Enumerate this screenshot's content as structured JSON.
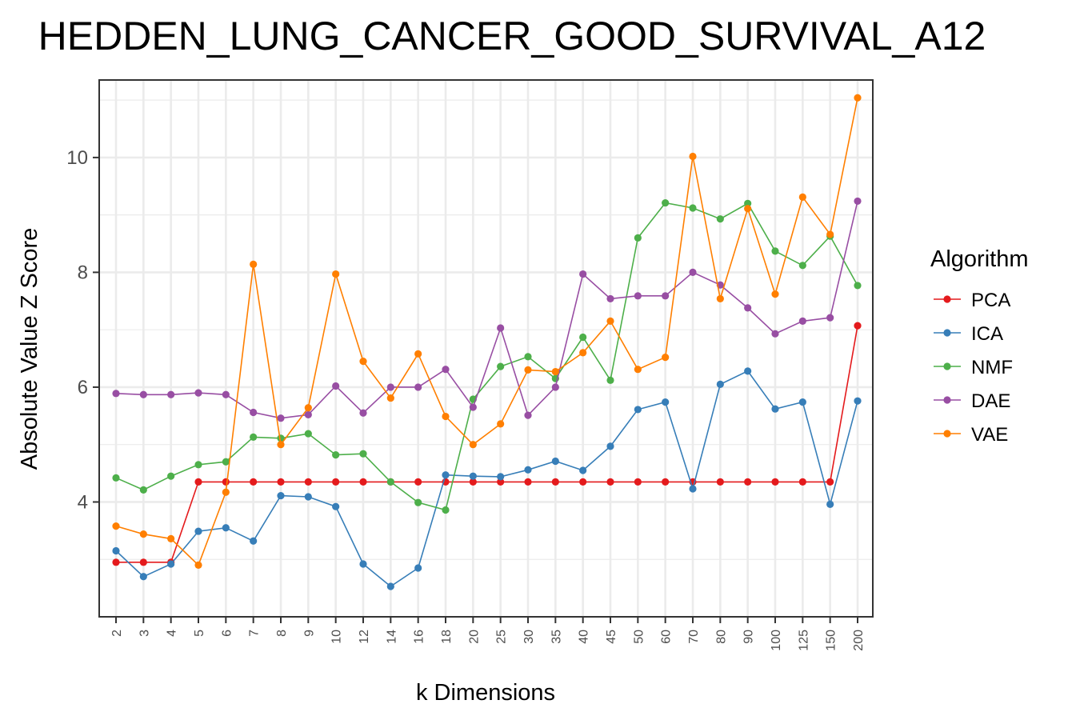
{
  "chart_data": {
    "type": "line",
    "title": "HEDDEN_LUNG_CANCER_GOOD_SURVIVAL_A12",
    "xlabel": "k Dimensions",
    "ylabel": "Absolute Value Z Score",
    "categories": [
      "2",
      "3",
      "4",
      "5",
      "6",
      "7",
      "8",
      "9",
      "10",
      "12",
      "14",
      "16",
      "18",
      "20",
      "25",
      "30",
      "35",
      "40",
      "45",
      "50",
      "60",
      "70",
      "80",
      "90",
      "100",
      "125",
      "150",
      "200"
    ],
    "ylim": [
      2.0,
      11.35
    ],
    "yticks": [
      4,
      6,
      8,
      10
    ],
    "grid": true,
    "legend": {
      "title": "Algorithm",
      "position": "right"
    },
    "series": [
      {
        "name": "PCA",
        "color": "#e41a1c",
        "values": [
          2.95,
          2.95,
          2.95,
          4.35,
          4.35,
          4.35,
          4.35,
          4.35,
          4.35,
          4.35,
          4.35,
          4.35,
          4.35,
          4.35,
          4.35,
          4.35,
          4.35,
          4.35,
          4.35,
          4.35,
          4.35,
          4.35,
          4.35,
          4.35,
          4.35,
          4.35,
          4.35,
          7.07
        ]
      },
      {
        "name": "ICA",
        "color": "#377eb8",
        "values": [
          3.15,
          2.7,
          2.92,
          3.49,
          3.55,
          3.32,
          4.11,
          4.09,
          3.92,
          2.92,
          2.53,
          2.85,
          4.47,
          4.45,
          4.44,
          4.56,
          4.71,
          4.55,
          4.97,
          5.61,
          5.74,
          4.23,
          6.05,
          6.28,
          5.62,
          5.74,
          3.96,
          5.76
        ]
      },
      {
        "name": "NMF",
        "color": "#4daf4a",
        "values": [
          4.42,
          4.21,
          4.45,
          4.65,
          4.7,
          5.13,
          5.11,
          5.19,
          4.82,
          4.84,
          4.35,
          3.99,
          3.86,
          5.79,
          6.36,
          6.53,
          6.15,
          6.87,
          6.12,
          8.6,
          9.21,
          9.12,
          8.93,
          9.2,
          8.37,
          8.12,
          8.63,
          7.77
        ]
      },
      {
        "name": "DAE",
        "color": "#984ea3",
        "values": [
          5.89,
          5.87,
          5.87,
          5.9,
          5.87,
          5.56,
          5.46,
          5.52,
          6.02,
          5.55,
          6.0,
          6.0,
          6.31,
          5.65,
          7.03,
          5.51,
          6.0,
          7.97,
          7.54,
          7.59,
          7.59,
          8.0,
          7.78,
          7.38,
          6.93,
          7.15,
          7.21,
          9.24
        ]
      },
      {
        "name": "VAE",
        "color": "#ff7f00",
        "values": [
          3.58,
          3.44,
          3.36,
          2.9,
          4.17,
          8.14,
          5.0,
          5.64,
          7.97,
          6.45,
          5.81,
          6.58,
          5.49,
          5.0,
          5.36,
          6.3,
          6.27,
          6.6,
          7.15,
          6.31,
          6.52,
          10.02,
          7.54,
          9.11,
          7.62,
          9.31,
          8.66,
          11.04
        ]
      }
    ]
  }
}
